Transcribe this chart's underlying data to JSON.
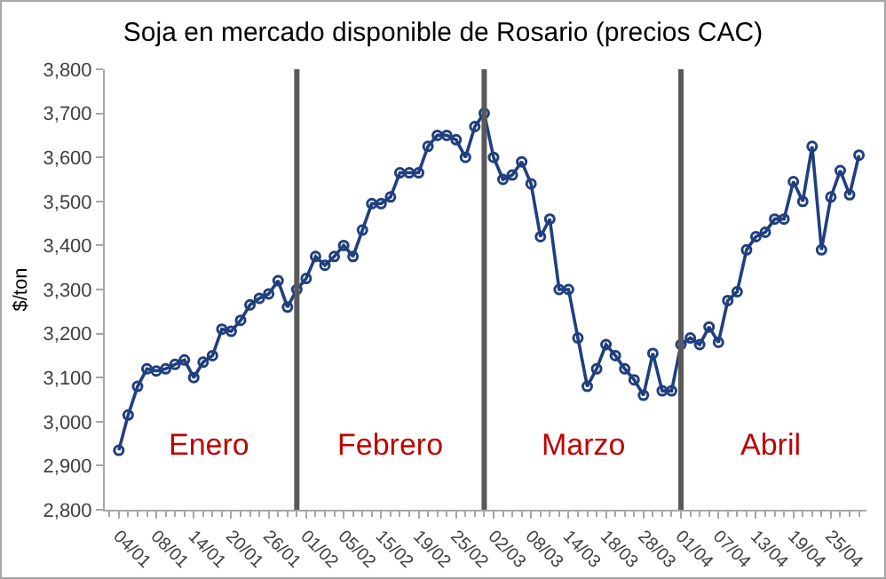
{
  "chart_data": {
    "type": "line",
    "title": "Soja en mercado disponible de Rosario (precios CAC)",
    "ylabel": "$/ton",
    "categories": [
      "04/01",
      null,
      null,
      null,
      "08/01",
      null,
      null,
      null,
      "14/01",
      null,
      null,
      null,
      "20/01",
      null,
      null,
      null,
      "26/01",
      null,
      null,
      null,
      "01/02",
      null,
      null,
      null,
      "05/02",
      null,
      null,
      null,
      "15/02",
      null,
      null,
      null,
      "19/02",
      null,
      null,
      null,
      "25/02",
      null,
      null,
      null,
      "02/03",
      null,
      null,
      null,
      "08/03",
      null,
      null,
      null,
      "14/03",
      null,
      null,
      null,
      "18/03",
      null,
      null,
      null,
      "28/03",
      null,
      null,
      null,
      "01/04",
      null,
      null,
      null,
      "07/04",
      null,
      null,
      null,
      "13/04",
      null,
      null,
      null,
      "19/04",
      null,
      null,
      null,
      "25/04",
      null,
      null,
      null
    ],
    "series": [
      {
        "color": "#1f3f7f",
        "values": [
          2935,
          3015,
          3080,
          3120,
          3115,
          3120,
          3130,
          3140,
          3100,
          3135,
          3150,
          3210,
          3205,
          3230,
          3265,
          3280,
          3290,
          3320,
          3260,
          3300,
          3325,
          3375,
          3355,
          3375,
          3400,
          3375,
          3435,
          3495,
          3495,
          3510,
          3565,
          3565,
          3565,
          3625,
          3650,
          3650,
          3640,
          3600,
          3670,
          3700,
          3600,
          3550,
          3560,
          3590,
          3540,
          3420,
          3460,
          3300,
          3300,
          3190,
          3080,
          3120,
          3175,
          3150,
          3120,
          3095,
          3060,
          3155,
          3070,
          3070,
          3175,
          3190,
          3175,
          3215,
          3180,
          3275,
          3295,
          3390,
          3420,
          3430,
          3460,
          3460,
          3545,
          3500,
          3625,
          3390,
          3510,
          3570,
          3515,
          3605
        ]
      }
    ],
    "ylim": [
      2800,
      3800
    ],
    "yticks": [
      {
        "value": 2800,
        "label": "2,800"
      },
      {
        "value": 2900,
        "label": "2,900"
      },
      {
        "value": 3000,
        "label": "3,000"
      },
      {
        "value": 3100,
        "label": "3,100"
      },
      {
        "value": 3200,
        "label": "3,200"
      },
      {
        "value": 3300,
        "label": "3,300"
      },
      {
        "value": 3400,
        "label": "3,400"
      },
      {
        "value": 3500,
        "label": "3,500"
      },
      {
        "value": 3600,
        "label": "3,600"
      },
      {
        "value": 3700,
        "label": "3,700"
      },
      {
        "value": 3800,
        "label": "3,800"
      }
    ],
    "annotations": [
      "Enero",
      "Febrero",
      "Marzo",
      "Abril"
    ],
    "grid": false,
    "legend": false,
    "marker": "circle",
    "line_style": "solid"
  }
}
